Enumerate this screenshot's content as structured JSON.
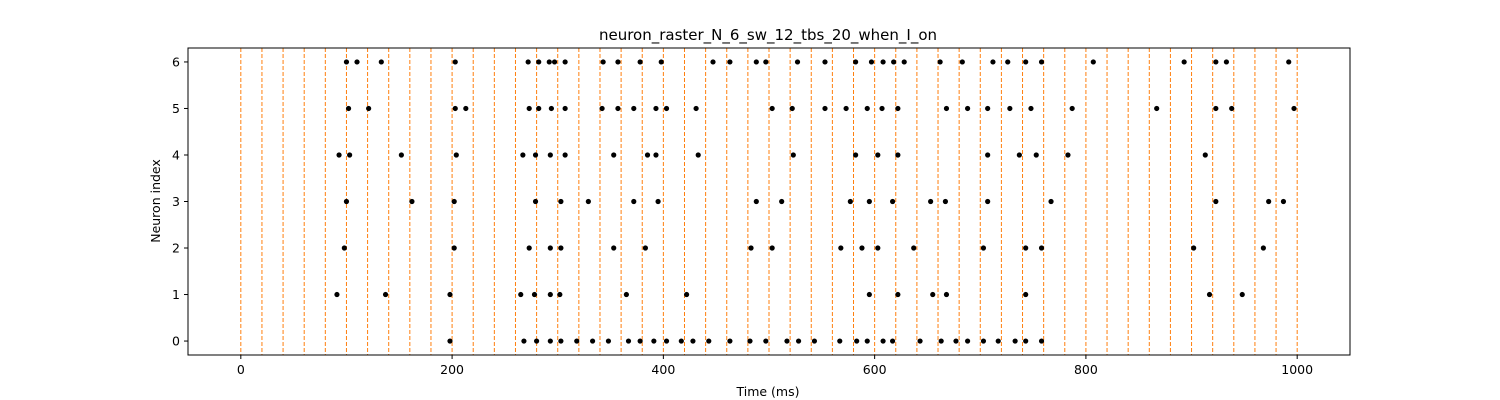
{
  "chart_data": {
    "type": "scatter",
    "title": "neuron_raster_N_6_sw_12_tbs_20_when_I_on",
    "xlabel": "Time (ms)",
    "ylabel": "Neuron index",
    "xlim": [
      -50,
      1050
    ],
    "ylim": [
      -0.3,
      6.3
    ],
    "xticks": [
      0,
      200,
      400,
      600,
      800,
      1000
    ],
    "yticks": [
      0,
      1,
      2,
      3,
      4,
      5,
      6
    ],
    "grid": false,
    "vlines": {
      "color": "#ff7f0e",
      "style": "dashed",
      "x": [
        0,
        20,
        40,
        60,
        80,
        100,
        120,
        140,
        160,
        180,
        200,
        220,
        240,
        260,
        280,
        300,
        320,
        340,
        360,
        380,
        400,
        420,
        440,
        460,
        480,
        500,
        520,
        540,
        560,
        580,
        600,
        620,
        640,
        660,
        680,
        700,
        720,
        740,
        760,
        780,
        800,
        820,
        840,
        860,
        880,
        900,
        920,
        940,
        960,
        980,
        1000
      ]
    },
    "marker_color": "#000000",
    "spikes": [
      {
        "neuron": 0,
        "times": [
          198,
          268,
          280,
          293,
          303,
          318,
          333,
          348,
          367,
          378,
          391,
          403,
          417,
          428,
          443,
          463,
          482,
          497,
          517,
          528,
          543,
          567,
          583,
          593,
          608,
          617,
          643,
          663,
          677,
          688,
          703,
          717,
          733,
          743,
          758
        ]
      },
      {
        "neuron": 1,
        "times": [
          91,
          137,
          198,
          265,
          278,
          293,
          302,
          365,
          422,
          595,
          622,
          655,
          668,
          743,
          917,
          948
        ]
      },
      {
        "neuron": 2,
        "times": [
          98,
          202,
          273,
          293,
          303,
          353,
          383,
          483,
          503,
          568,
          588,
          603,
          637,
          703,
          743,
          758,
          902,
          968
        ]
      },
      {
        "neuron": 3,
        "times": [
          100,
          162,
          202,
          279,
          303,
          329,
          372,
          395,
          488,
          512,
          577,
          595,
          617,
          653,
          667,
          707,
          767,
          923,
          973,
          987
        ]
      },
      {
        "neuron": 4,
        "times": [
          93,
          103,
          152,
          204,
          267,
          279,
          293,
          307,
          353,
          385,
          393,
          433,
          523,
          582,
          603,
          622,
          707,
          737,
          753,
          783,
          913
        ]
      },
      {
        "neuron": 5,
        "times": [
          102,
          121,
          203,
          213,
          273,
          282,
          294,
          307,
          342,
          357,
          372,
          393,
          403,
          431,
          503,
          522,
          553,
          573,
          593,
          607,
          622,
          668,
          688,
          707,
          728,
          748,
          787,
          867,
          923,
          938,
          997
        ]
      },
      {
        "neuron": 6,
        "times": [
          100,
          110,
          133,
          203,
          272,
          282,
          292,
          297,
          307,
          343,
          357,
          378,
          398,
          447,
          463,
          488,
          497,
          527,
          553,
          582,
          597,
          608,
          618,
          628,
          662,
          683,
          712,
          726,
          743,
          758,
          807,
          893,
          923,
          933,
          992
        ]
      }
    ]
  }
}
